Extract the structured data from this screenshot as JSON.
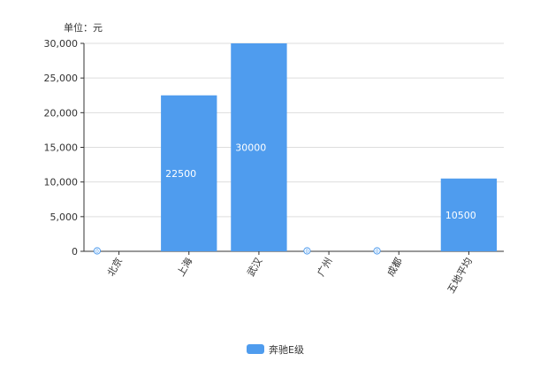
{
  "chart_data": {
    "type": "bar",
    "unit_label": "单位：元",
    "categories": [
      "北京",
      "上海",
      "武汉",
      "广州",
      "成都",
      "五地平均"
    ],
    "series": [
      {
        "name": "奔驰E级",
        "values": [
          0,
          22500,
          30000,
          0,
          0,
          10500
        ],
        "data_labels": [
          "0",
          "22500",
          "30000",
          "0",
          "0",
          "10500"
        ]
      }
    ],
    "yticks": [
      "0",
      "5,000",
      "10,000",
      "15,000",
      "20,000",
      "25,000",
      "30,000"
    ],
    "ylim": [
      0,
      30000
    ],
    "grid": true,
    "legend_position": "bottom-center",
    "colors": {
      "bar": "#4f9cee",
      "grid": "#dddddd",
      "axis": "#333333",
      "text": "#333333",
      "label": "#ffffff"
    }
  }
}
